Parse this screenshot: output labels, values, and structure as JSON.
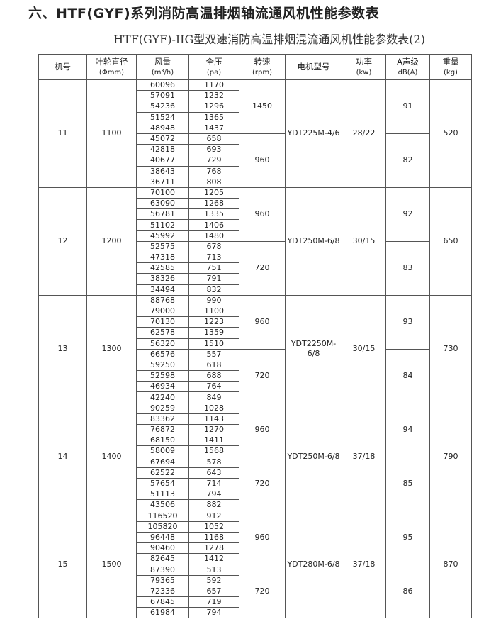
{
  "title": "六、HTF(GYF)系列消防高温排烟轴流通风机性能参数表",
  "subtitle": "HTF(GYF)-IIG型双速消防高温排烟混流通风机性能参数表(2)",
  "headers": [
    {
      "label": "机号",
      "unit": ""
    },
    {
      "label": "叶轮直径",
      "unit": "(Φmm)"
    },
    {
      "label": "风量",
      "unit": "(m³/h)"
    },
    {
      "label": "全压",
      "unit": "(pa)"
    },
    {
      "label": "转速",
      "unit": "(rpm)"
    },
    {
      "label": "电机型号",
      "unit": ""
    },
    {
      "label": "功率",
      "unit": "(kw)"
    },
    {
      "label": "A声级",
      "unit": "dB(A)"
    },
    {
      "label": "重量",
      "unit": "(kg)"
    }
  ],
  "groups": [
    {
      "model": "11",
      "diameter": "1100",
      "motor": "YDT225M-4/6",
      "power": "28/22",
      "weight": "520",
      "speeds": [
        {
          "rpm": "1450",
          "db": "91",
          "rows": [
            [
              "60096",
              "1170"
            ],
            [
              "57091",
              "1232"
            ],
            [
              "54236",
              "1296"
            ],
            [
              "51524",
              "1365"
            ],
            [
              "48948",
              "1437"
            ]
          ]
        },
        {
          "rpm": "960",
          "db": "82",
          "rows": [
            [
              "45072",
              "658"
            ],
            [
              "42818",
              "693"
            ],
            [
              "40677",
              "729"
            ],
            [
              "38643",
              "768"
            ],
            [
              "36711",
              "808"
            ]
          ]
        }
      ]
    },
    {
      "model": "12",
      "diameter": "1200",
      "motor": "YDT250M-6/8",
      "power": "30/15",
      "weight": "650",
      "speeds": [
        {
          "rpm": "960",
          "db": "92",
          "rows": [
            [
              "70100",
              "1205"
            ],
            [
              "63090",
              "1268"
            ],
            [
              "56781",
              "1335"
            ],
            [
              "51102",
              "1406"
            ],
            [
              "45992",
              "1480"
            ]
          ]
        },
        {
          "rpm": "720",
          "db": "83",
          "rows": [
            [
              "52575",
              "678"
            ],
            [
              "47318",
              "713"
            ],
            [
              "42585",
              "751"
            ],
            [
              "38326",
              "791"
            ],
            [
              "34494",
              "832"
            ]
          ]
        }
      ]
    },
    {
      "model": "13",
      "diameter": "1300",
      "motor": "YDT2250M-6/8",
      "power": "30/15",
      "weight": "730",
      "speeds": [
        {
          "rpm": "960",
          "db": "93",
          "rows": [
            [
              "88768",
              "990"
            ],
            [
              "79000",
              "1100"
            ],
            [
              "70130",
              "1223"
            ],
            [
              "62578",
              "1359"
            ],
            [
              "56320",
              "1510"
            ]
          ]
        },
        {
          "rpm": "720",
          "db": "84",
          "rows": [
            [
              "66576",
              "557"
            ],
            [
              "59250",
              "618"
            ],
            [
              "52598",
              "688"
            ],
            [
              "46934",
              "764"
            ],
            [
              "42240",
              "849"
            ]
          ]
        }
      ]
    },
    {
      "model": "14",
      "diameter": "1400",
      "motor": "YDT250M-6/8",
      "power": "37/18",
      "weight": "790",
      "speeds": [
        {
          "rpm": "960",
          "db": "94",
          "rows": [
            [
              "90259",
              "1028"
            ],
            [
              "83362",
              "1143"
            ],
            [
              "76872",
              "1270"
            ],
            [
              "68150",
              "1411"
            ],
            [
              "58009",
              "1568"
            ]
          ]
        },
        {
          "rpm": "720",
          "db": "85",
          "rows": [
            [
              "67694",
              "578"
            ],
            [
              "62522",
              "643"
            ],
            [
              "57654",
              "714"
            ],
            [
              "51113",
              "794"
            ],
            [
              "43506",
              "882"
            ]
          ]
        }
      ]
    },
    {
      "model": "15",
      "diameter": "1500",
      "motor": "YDT280M-6/8",
      "power": "37/18",
      "weight": "870",
      "speeds": [
        {
          "rpm": "960",
          "db": "95",
          "rows": [
            [
              "116520",
              "912"
            ],
            [
              "105820",
              "1052"
            ],
            [
              "96448",
              "1168"
            ],
            [
              "90460",
              "1278"
            ],
            [
              "82645",
              "1412"
            ]
          ]
        },
        {
          "rpm": "720",
          "db": "86",
          "rows": [
            [
              "87390",
              "513"
            ],
            [
              "79365",
              "592"
            ],
            [
              "72336",
              "657"
            ],
            [
              "67845",
              "719"
            ],
            [
              "61984",
              "794"
            ]
          ]
        }
      ]
    }
  ]
}
